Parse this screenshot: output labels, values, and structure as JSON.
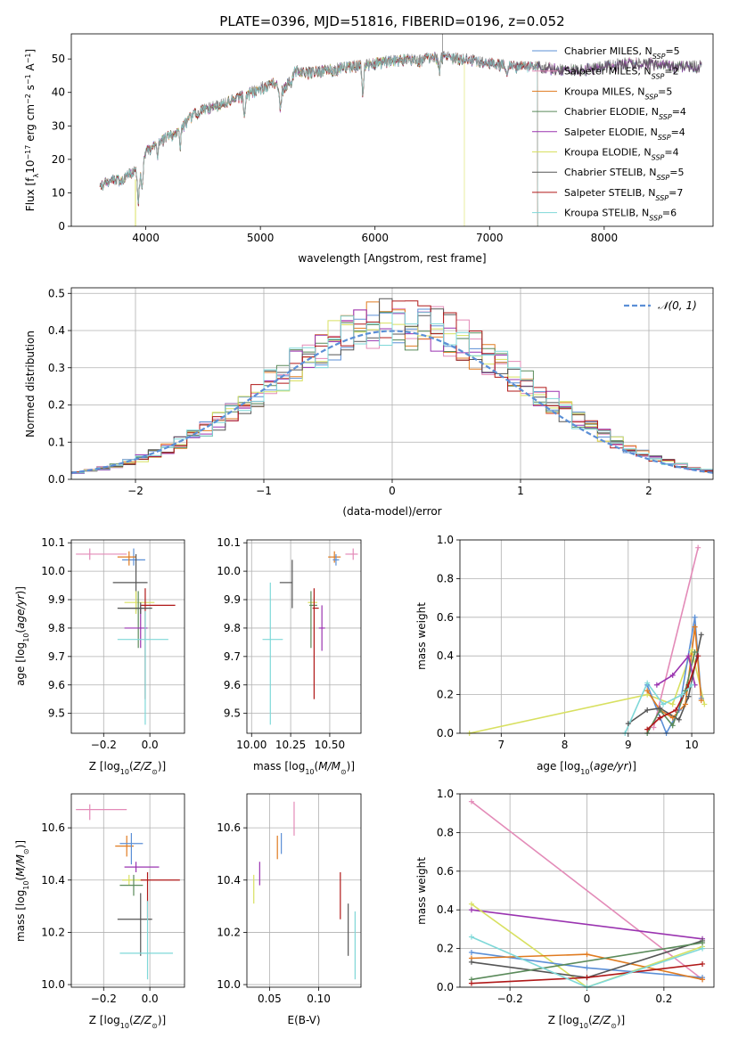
{
  "figure_title": "PLATE=0396, MJD=51816, FIBERID=0196, z=0.052",
  "colors": {
    "Chabrier MILES": "#5b8fd6",
    "Salpeter MILES": "#e38bb8",
    "Kroupa MILES": "#e07b20",
    "Chabrier ELODIE": "#5a8a5a",
    "Salpeter ELODIE": "#9a33b0",
    "Kroupa ELODIE": "#d8e060",
    "Chabrier STELIB": "#555555",
    "Salpeter STELIB": "#b01818",
    "Kroupa STELIB": "#7fd8d8"
  },
  "chart_data": [
    {
      "id": "spectrum",
      "type": "line",
      "xlabel": "wavelength [Angstrom, rest frame]",
      "ylabel": "Flux [f_λ10^-17 erg cm^-2 s^-1 A^-1]",
      "xlim": [
        3350,
        8950
      ],
      "ylim": [
        0,
        57.5
      ],
      "xticks": [
        4000,
        5000,
        6000,
        7000,
        8000
      ],
      "yticks": [
        0,
        10,
        20,
        30,
        40,
        50
      ],
      "grid": false,
      "legend": "top-right",
      "continuum": [
        [
          3600,
          12
        ],
        [
          3700,
          14
        ],
        [
          3800,
          14
        ],
        [
          3900,
          17
        ],
        [
          3950,
          15
        ],
        [
          4000,
          22
        ],
        [
          4100,
          25
        ],
        [
          4200,
          27
        ],
        [
          4300,
          29
        ],
        [
          4400,
          33
        ],
        [
          4500,
          35
        ],
        [
          4700,
          37
        ],
        [
          4900,
          40
        ],
        [
          5100,
          43
        ],
        [
          5200,
          41
        ],
        [
          5300,
          47
        ],
        [
          5400,
          46
        ],
        [
          5600,
          47
        ],
        [
          5800,
          48
        ],
        [
          6000,
          49
        ],
        [
          6200,
          50
        ],
        [
          6400,
          50
        ],
        [
          6600,
          51
        ],
        [
          6800,
          50
        ],
        [
          7000,
          49
        ],
        [
          7200,
          48
        ],
        [
          7400,
          48
        ],
        [
          7600,
          47
        ],
        [
          7800,
          47
        ],
        [
          8000,
          48
        ],
        [
          8200,
          49
        ],
        [
          8400,
          49
        ],
        [
          8600,
          48
        ],
        [
          8850,
          48
        ]
      ],
      "series": [
        {
          "name": "Chabrier MILES",
          "nssp": "5"
        },
        {
          "name": "Salpeter MILES",
          "nssp": "2"
        },
        {
          "name": "Kroupa MILES",
          "nssp": "5"
        },
        {
          "name": "Chabrier ELODIE",
          "nssp": "4"
        },
        {
          "name": "Salpeter ELODIE",
          "nssp": "4"
        },
        {
          "name": "Kroupa ELODIE",
          "nssp": "4"
        },
        {
          "name": "Chabrier STELIB",
          "nssp": "5"
        },
        {
          "name": "Salpeter STELIB",
          "nssp": "7"
        },
        {
          "name": "Kroupa STELIB",
          "nssp": "6"
        }
      ]
    },
    {
      "id": "residuals",
      "type": "histogram",
      "xlabel": "(data-model)/error",
      "ylabel": "Normed distribution",
      "xlim": [
        -2.5,
        2.5
      ],
      "ylim": [
        0,
        0.515
      ],
      "xticks": [
        -2,
        -1,
        0,
        1,
        2
      ],
      "yticks": [
        0.0,
        0.1,
        0.2,
        0.3,
        0.4,
        0.5
      ],
      "grid": true,
      "legend": "top-right",
      "reference_label": "𝒩(0, 1)",
      "bin_width": 0.1
    },
    {
      "id": "age_vs_Z",
      "type": "errorbar",
      "xlabel": "Z [log10(Z/Z⊙)]",
      "ylabel": "age [log10(age/yr)]",
      "xlim": [
        -0.34,
        0.15
      ],
      "ylim": [
        9.43,
        10.11
      ],
      "xticks": [
        -0.2,
        0.0
      ],
      "yticks": [
        9.5,
        9.6,
        9.7,
        9.8,
        9.9,
        10.0,
        10.1
      ],
      "grid": true,
      "points": [
        {
          "series": "Salpeter MILES",
          "x": -0.26,
          "xerr": [
            0.06,
            0.16
          ],
          "y": 10.06,
          "yerr": [
            0.02,
            0.02
          ]
        },
        {
          "series": "Chabrier MILES",
          "x": -0.07,
          "xerr": [
            0.05,
            0.05
          ],
          "y": 10.04,
          "yerr": [
            0.02,
            0.04
          ]
        },
        {
          "series": "Kroupa MILES",
          "x": -0.09,
          "xerr": [
            0.05,
            0.03
          ],
          "y": 10.05,
          "yerr": [
            0.03,
            0.02
          ]
        },
        {
          "series": "Chabrier STELIB",
          "x": -0.06,
          "xerr": [
            0.1,
            0.05
          ],
          "y": 9.96,
          "yerr": [
            0.1,
            0.1
          ]
        },
        {
          "series": "Kroupa ELODIE",
          "x": -0.06,
          "xerr": [
            0.05,
            0.08
          ],
          "y": 9.89,
          "yerr": [
            0.04,
            0.04
          ]
        },
        {
          "series": "Chabrier ELODIE",
          "x": -0.05,
          "xerr": [
            0.08,
            0.04
          ],
          "y": 9.87,
          "yerr": [
            0.14,
            0.06
          ]
        },
        {
          "series": "Salpeter STELIB",
          "x": -0.02,
          "xerr": [
            0.02,
            0.13
          ],
          "y": 9.88,
          "yerr": [
            0.33,
            0.06
          ]
        },
        {
          "series": "Salpeter ELODIE",
          "x": -0.04,
          "xerr": [
            0.07,
            0.03
          ],
          "y": 9.8,
          "yerr": [
            0.07,
            0.08
          ]
        },
        {
          "series": "Kroupa STELIB",
          "x": -0.02,
          "xerr": [
            0.12,
            0.1
          ],
          "y": 9.76,
          "yerr": [
            0.3,
            0.1
          ]
        },
        {
          "series": "Chabrier STELIB",
          "x": -0.04,
          "xerr": [
            0.1,
            0.05
          ],
          "y": 9.87,
          "yerr": [
            0.02,
            0.02
          ]
        }
      ]
    },
    {
      "id": "age_vs_mass",
      "type": "errorbar",
      "xlabel": "mass [log10(M/M⊙)]",
      "ylabel": "",
      "xlim": [
        9.97,
        10.7
      ],
      "ylim": [
        9.43,
        10.11
      ],
      "xticks": [
        10.0,
        10.25,
        10.5
      ],
      "yticks": [
        9.5,
        9.6,
        9.7,
        9.8,
        9.9,
        10.0,
        10.1
      ],
      "grid": true,
      "points": [
        {
          "series": "Salpeter MILES",
          "x": 10.65,
          "xerr": [
            0.05,
            0.03
          ],
          "y": 10.06,
          "yerr": [
            0.02,
            0.02
          ]
        },
        {
          "series": "Kroupa MILES",
          "x": 10.53,
          "xerr": [
            0.04,
            0.04
          ],
          "y": 10.05,
          "yerr": [
            0.02,
            0.02
          ]
        },
        {
          "series": "Chabrier MILES",
          "x": 10.54,
          "xerr": [
            0.02,
            0.02
          ],
          "y": 10.04,
          "yerr": [
            0.02,
            0.02
          ]
        },
        {
          "series": "Chabrier STELIB",
          "x": 10.26,
          "xerr": [
            0.08,
            0.0
          ],
          "y": 9.96,
          "yerr": [
            0.09,
            0.08
          ]
        },
        {
          "series": "Kroupa ELODIE",
          "x": 10.4,
          "xerr": [
            0.04,
            0.02
          ],
          "y": 9.89,
          "yerr": [
            0.02,
            0.02
          ]
        },
        {
          "series": "Chabrier ELODIE",
          "x": 10.38,
          "xerr": [
            0.01,
            0.04
          ],
          "y": 9.88,
          "yerr": [
            0.15,
            0.05
          ]
        },
        {
          "series": "Salpeter STELIB",
          "x": 10.4,
          "xerr": [
            0.01,
            0.03
          ],
          "y": 9.87,
          "yerr": [
            0.32,
            0.07
          ]
        },
        {
          "series": "Salpeter ELODIE",
          "x": 10.45,
          "xerr": [
            0.02,
            0.02
          ],
          "y": 9.8,
          "yerr": [
            0.08,
            0.08
          ]
        },
        {
          "series": "Kroupa STELIB",
          "x": 10.12,
          "xerr": [
            0.05,
            0.08
          ],
          "y": 9.76,
          "yerr": [
            0.3,
            0.2
          ]
        }
      ]
    },
    {
      "id": "weight_vs_age",
      "type": "line",
      "xlabel": "age [log10(age/yr)]",
      "ylabel": "mass weight",
      "xlim": [
        6.35,
        10.35
      ],
      "ylim": [
        0,
        1.0
      ],
      "xticks": [
        7,
        8,
        9,
        10
      ],
      "yticks": [
        0.0,
        0.2,
        0.4,
        0.6,
        0.8,
        1.0
      ],
      "grid": true,
      "series": [
        {
          "name": "Kroupa ELODIE",
          "x": [
            6.5,
            9.3,
            9.7,
            10.0,
            10.2
          ],
          "y": [
            0.0,
            0.2,
            0.15,
            0.43,
            0.15
          ]
        },
        {
          "name": "Chabrier MILES",
          "x": [
            9.3,
            9.6,
            9.8,
            10.05,
            10.15
          ],
          "y": [
            0.25,
            0.0,
            0.12,
            0.6,
            0.18
          ]
        },
        {
          "name": "Salpeter MILES",
          "x": [
            9.4,
            10.1
          ],
          "y": [
            0.03,
            0.96
          ]
        },
        {
          "name": "Kroupa MILES",
          "x": [
            9.3,
            9.5,
            9.7,
            9.9,
            10.05,
            10.15
          ],
          "y": [
            0.22,
            0.12,
            0.08,
            0.15,
            0.55,
            0.17
          ]
        },
        {
          "name": "Chabrier ELODIE",
          "x": [
            9.3,
            9.5,
            9.7,
            9.9,
            10.05
          ],
          "y": [
            0.0,
            0.12,
            0.04,
            0.22,
            0.42
          ]
        },
        {
          "name": "Salpeter ELODIE",
          "x": [
            9.45,
            9.7,
            9.95,
            10.05
          ],
          "y": [
            0.25,
            0.3,
            0.4,
            0.25
          ]
        },
        {
          "name": "Chabrier STELIB",
          "x": [
            9.0,
            9.3,
            9.5,
            9.8,
            9.95,
            10.15
          ],
          "y": [
            0.05,
            0.12,
            0.13,
            0.07,
            0.19,
            0.51
          ]
        },
        {
          "name": "Salpeter STELIB",
          "x": [
            9.3,
            9.5,
            9.75,
            9.95,
            10.1
          ],
          "y": [
            0.02,
            0.08,
            0.12,
            0.25,
            0.4
          ]
        },
        {
          "name": "Kroupa STELIB",
          "x": [
            8.95,
            9.3,
            9.55,
            9.85,
            10.0
          ],
          "y": [
            0.0,
            0.26,
            0.15,
            0.2,
            0.25
          ]
        }
      ]
    },
    {
      "id": "mass_vs_Z",
      "type": "errorbar",
      "xlabel": "Z [log10(Z/Z⊙)]",
      "ylabel": "mass [log10(M/M⊙)]",
      "xlim": [
        -0.34,
        0.15
      ],
      "ylim": [
        9.99,
        10.73
      ],
      "xticks": [
        -0.2,
        0.0
      ],
      "yticks": [
        10.0,
        10.2,
        10.4,
        10.6
      ],
      "grid": true,
      "points": [
        {
          "series": "Salpeter MILES",
          "x": -0.26,
          "xerr": [
            0.06,
            0.16
          ],
          "y": 10.67,
          "yerr": [
            0.04,
            0.02
          ]
        },
        {
          "series": "Kroupa MILES",
          "x": -0.1,
          "xerr": [
            0.05,
            0.03
          ],
          "y": 10.53,
          "yerr": [
            0.04,
            0.04
          ]
        },
        {
          "series": "Chabrier MILES",
          "x": -0.08,
          "xerr": [
            0.05,
            0.05
          ],
          "y": 10.54,
          "yerr": [
            0.08,
            0.04
          ]
        },
        {
          "series": "Salpeter ELODIE",
          "x": -0.06,
          "xerr": [
            0.05,
            0.1
          ],
          "y": 10.45,
          "yerr": [
            0.02,
            0.02
          ]
        },
        {
          "series": "Kroupa ELODIE",
          "x": -0.09,
          "xerr": [
            0.03,
            0.06
          ],
          "y": 10.4,
          "yerr": [
            0.02,
            0.02
          ]
        },
        {
          "series": "Chabrier ELODIE",
          "x": -0.07,
          "xerr": [
            0.06,
            0.04
          ],
          "y": 10.38,
          "yerr": [
            0.04,
            0.04
          ]
        },
        {
          "series": "Salpeter STELIB",
          "x": -0.01,
          "xerr": [
            0.03,
            0.14
          ],
          "y": 10.4,
          "yerr": [
            0.15,
            0.03
          ]
        },
        {
          "series": "Chabrier STELIB",
          "x": -0.04,
          "xerr": [
            0.1,
            0.05
          ],
          "y": 10.25,
          "yerr": [
            0.14,
            0.1
          ]
        },
        {
          "series": "Kroupa STELIB",
          "x": -0.01,
          "xerr": [
            0.12,
            0.11
          ],
          "y": 10.12,
          "yerr": [
            0.1,
            0.2
          ]
        }
      ]
    },
    {
      "id": "mass_vs_ebv",
      "type": "errorbar",
      "xlabel": "E(B-V)",
      "ylabel": "",
      "xlim": [
        0.027,
        0.143
      ],
      "ylim": [
        9.99,
        10.73
      ],
      "xticks": [
        0.05,
        0.1
      ],
      "yticks": [
        10.0,
        10.2,
        10.4,
        10.6
      ],
      "grid": true,
      "points": [
        {
          "series": "Kroupa ELODIE",
          "x": 0.034,
          "xerr": [
            0,
            0
          ],
          "y": 10.36,
          "yerr": [
            0.05,
            0.06
          ]
        },
        {
          "series": "Salpeter ELODIE",
          "x": 0.04,
          "xerr": [
            0,
            0
          ],
          "y": 10.42,
          "yerr": [
            0.04,
            0.05
          ]
        },
        {
          "series": "Kroupa MILES",
          "x": 0.058,
          "xerr": [
            0,
            0
          ],
          "y": 10.52,
          "yerr": [
            0.04,
            0.05
          ]
        },
        {
          "series": "Chabrier MILES",
          "x": 0.062,
          "xerr": [
            0,
            0
          ],
          "y": 10.54,
          "yerr": [
            0.04,
            0.04
          ]
        },
        {
          "series": "Salpeter MILES",
          "x": 0.075,
          "xerr": [
            0,
            0
          ],
          "y": 10.63,
          "yerr": [
            0.06,
            0.07
          ]
        },
        {
          "series": "Salpeter STELIB",
          "x": 0.122,
          "xerr": [
            0,
            0
          ],
          "y": 10.34,
          "yerr": [
            0.09,
            0.09
          ]
        },
        {
          "series": "Chabrier STELIB",
          "x": 0.13,
          "xerr": [
            0,
            0
          ],
          "y": 10.21,
          "yerr": [
            0.1,
            0.1
          ]
        },
        {
          "series": "Kroupa STELIB",
          "x": 0.137,
          "xerr": [
            0,
            0
          ],
          "y": 10.15,
          "yerr": [
            0.13,
            0.13
          ]
        }
      ]
    },
    {
      "id": "weight_vs_Z",
      "type": "line",
      "xlabel": "Z [log10(Z/Z⊙)]",
      "ylabel": "mass weight",
      "xlim": [
        -0.33,
        0.33
      ],
      "ylim": [
        0,
        1.0
      ],
      "xticks": [
        -0.2,
        0.0,
        0.2
      ],
      "yticks": [
        0.0,
        0.2,
        0.4,
        0.6,
        0.8,
        1.0
      ],
      "grid": true,
      "series": [
        {
          "name": "Salpeter MILES",
          "x": [
            -0.3,
            0.3
          ],
          "y": [
            0.96,
            0.04
          ]
        },
        {
          "name": "Salpeter ELODIE",
          "x": [
            -0.3,
            0.3
          ],
          "y": [
            0.4,
            0.25
          ]
        },
        {
          "name": "Kroupa ELODIE",
          "x": [
            -0.3,
            0.0,
            0.3
          ],
          "y": [
            0.43,
            0.0,
            0.21
          ]
        },
        {
          "name": "Chabrier MILES",
          "x": [
            -0.3,
            0.0,
            0.3
          ],
          "y": [
            0.18,
            0.1,
            0.05
          ]
        },
        {
          "name": "Kroupa MILES",
          "x": [
            -0.3,
            0.0,
            0.3
          ],
          "y": [
            0.15,
            0.17,
            0.04
          ]
        },
        {
          "name": "Chabrier STELIB",
          "x": [
            -0.3,
            0.0,
            0.3
          ],
          "y": [
            0.13,
            0.05,
            0.24
          ]
        },
        {
          "name": "Chabrier ELODIE",
          "x": [
            -0.3,
            0.3
          ],
          "y": [
            0.04,
            0.23
          ]
        },
        {
          "name": "Salpeter STELIB",
          "x": [
            -0.3,
            0.0,
            0.3
          ],
          "y": [
            0.02,
            0.05,
            0.12
          ]
        },
        {
          "name": "Kroupa STELIB",
          "x": [
            -0.3,
            0.0,
            0.3
          ],
          "y": [
            0.26,
            0.0,
            0.2
          ]
        }
      ]
    }
  ]
}
